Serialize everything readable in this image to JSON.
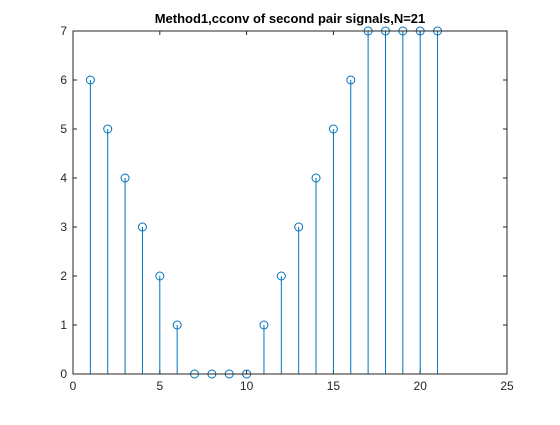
{
  "chart_data": {
    "type": "stem",
    "title": "Method1,cconv of second pair signals,N=21",
    "xlabel": "",
    "ylabel": "",
    "xlim": [
      0,
      25
    ],
    "ylim": [
      0,
      7
    ],
    "xticks": [
      0,
      5,
      10,
      15,
      20,
      25
    ],
    "yticks": [
      0,
      1,
      2,
      3,
      4,
      5,
      6,
      7
    ],
    "grid": false,
    "color": "#0072BD",
    "x": [
      1,
      2,
      3,
      4,
      5,
      6,
      7,
      8,
      9,
      10,
      11,
      12,
      13,
      14,
      15,
      16,
      17,
      18,
      19,
      20,
      21
    ],
    "values": [
      6,
      5,
      4,
      3,
      2,
      1,
      0,
      0,
      0,
      0,
      1,
      2,
      3,
      4,
      5,
      6,
      7,
      7,
      7,
      7,
      7
    ]
  }
}
